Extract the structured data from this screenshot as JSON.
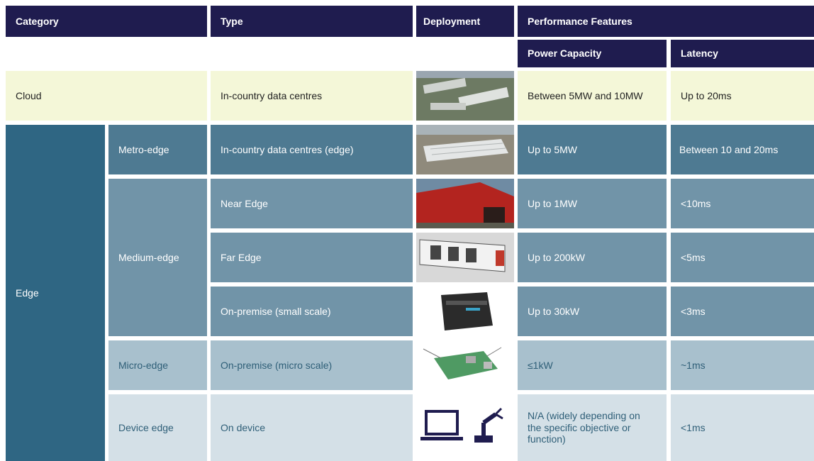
{
  "table": {
    "header": {
      "category": "Category",
      "type": "Type",
      "deployment": "Deployment",
      "performance_features": "Performance Features",
      "power_capacity": "Power Capacity",
      "latency": "Latency"
    },
    "cloud": {
      "category": "Cloud",
      "type": "In-country data centres",
      "power": "Between 5MW and 10MW",
      "latency": "Up to 20ms"
    },
    "edge": {
      "category": "Edge",
      "subgroups": [
        {
          "name": "Metro-edge",
          "rows": [
            {
              "type": "In-country data centres (edge)",
              "power": "Up to 5MW",
              "latency": "Between 10 and 20ms"
            }
          ]
        },
        {
          "name": "Medium-edge",
          "rows": [
            {
              "type": "Near Edge",
              "power": "Up to 1MW",
              "latency": "<10ms"
            },
            {
              "type": "Far Edge",
              "power": "Up to 200kW",
              "latency": "<5ms"
            },
            {
              "type": "On-premise (small scale)",
              "power": "Up to 30kW",
              "latency": "<3ms"
            }
          ]
        },
        {
          "name": "Micro-edge",
          "rows": [
            {
              "type": "On-premise (micro scale)",
              "power": "≤1kW",
              "latency": "~1ms"
            }
          ]
        },
        {
          "name": "Device edge",
          "rows": [
            {
              "type": "On device",
              "power": "N/A (widely depending on the specific objective or function)",
              "latency": "<1ms"
            }
          ]
        }
      ]
    }
  }
}
